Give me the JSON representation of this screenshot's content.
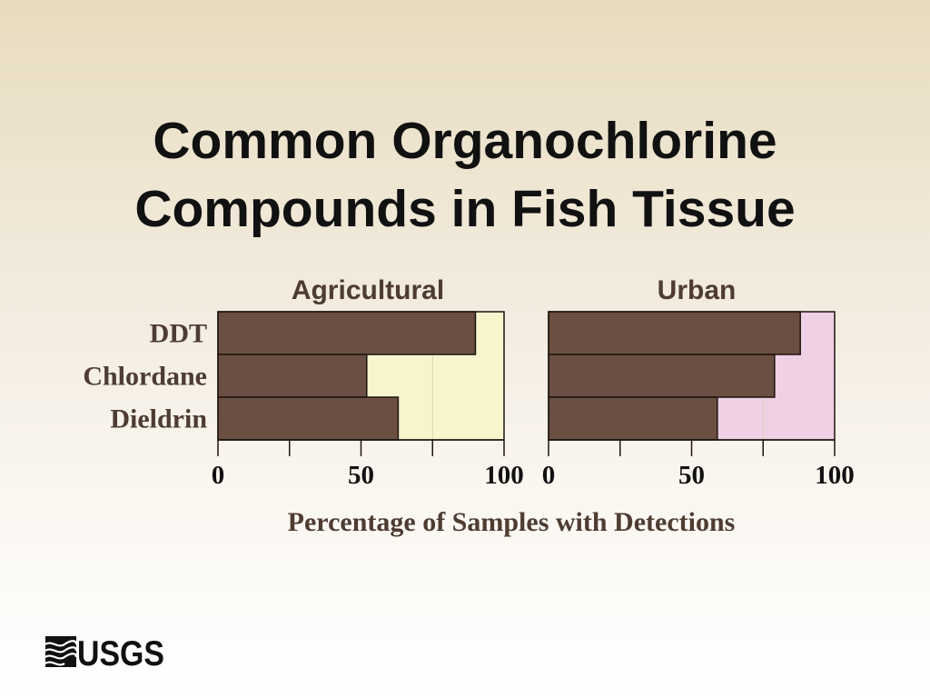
{
  "title": {
    "line1": "Common Organochlorine",
    "line2": "Compounds in Fish Tissue"
  },
  "logo": {
    "text": "USGS"
  },
  "chart_data": {
    "type": "bar",
    "orientation": "horizontal",
    "categories": [
      "DDT",
      "Chlordane",
      "Dieldrin"
    ],
    "xlabel": "Percentage of Samples with Detections",
    "xlim": [
      0,
      100
    ],
    "xticks": [
      "0",
      "50",
      "100"
    ],
    "bar_color": "#6b4f43",
    "panels": [
      {
        "title": "Agricultural",
        "values": [
          90,
          52,
          63
        ],
        "background": "#f8f5cd"
      },
      {
        "title": "Urban",
        "values": [
          88,
          79,
          59
        ],
        "background": "#efd0e4"
      }
    ]
  }
}
